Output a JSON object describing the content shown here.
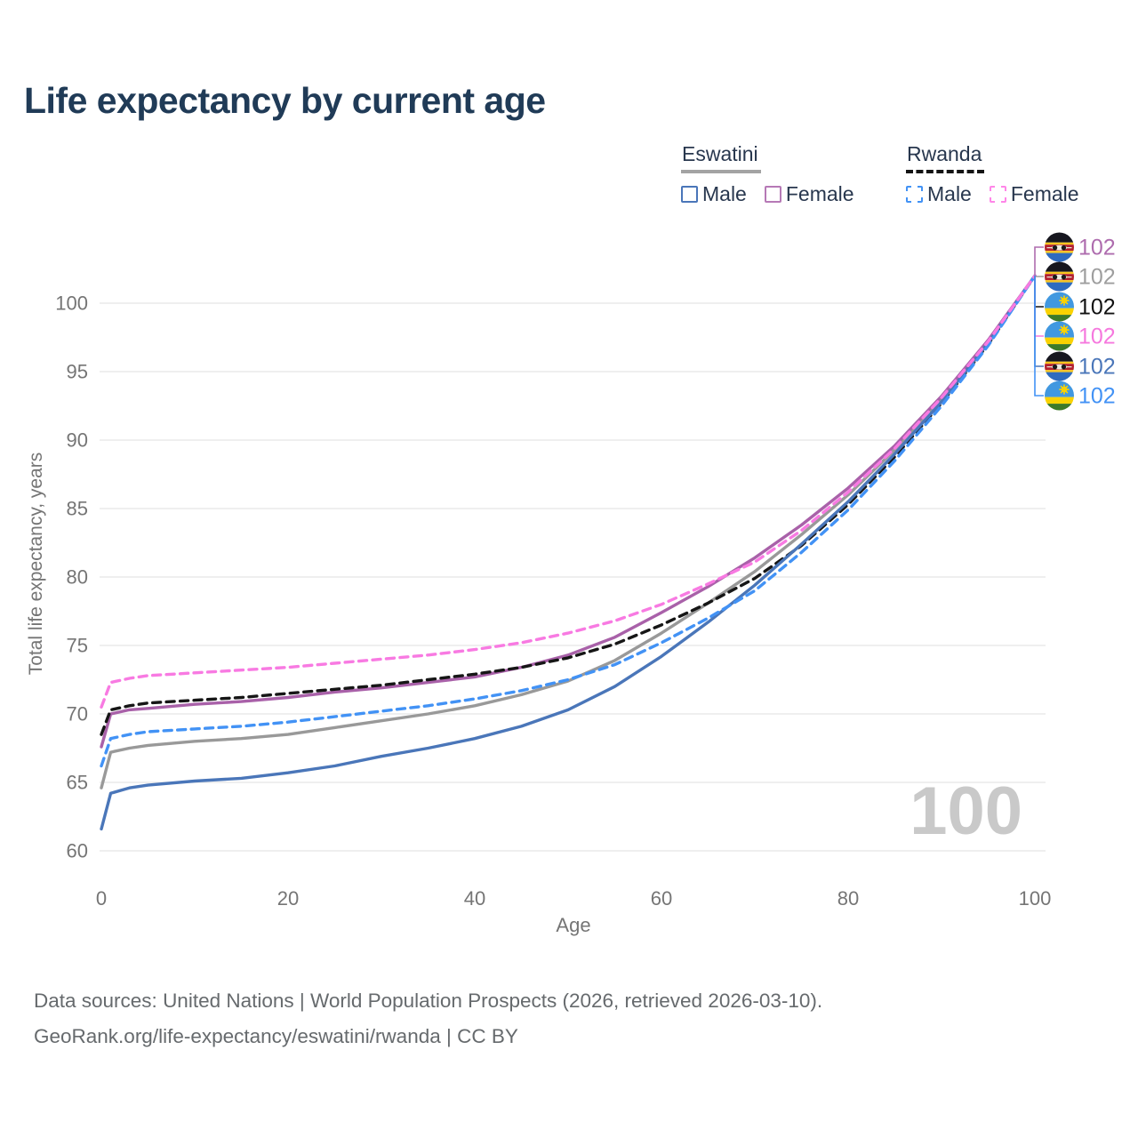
{
  "title": "Life expectancy by current age",
  "legend": {
    "groups": [
      {
        "label": "Eswatini",
        "line_style": "solid",
        "underline_color": "#a3a3a3",
        "items": [
          {
            "label": "Male",
            "color": "#4a76b9",
            "dashed": false
          },
          {
            "label": "Female",
            "color": "#b679b6",
            "dashed": false
          }
        ]
      },
      {
        "label": "Rwanda",
        "line_style": "dashed",
        "underline_color": "#141414",
        "items": [
          {
            "label": "Male",
            "color": "#4292f5",
            "dashed": true
          },
          {
            "label": "Female",
            "color": "#ff86e8",
            "dashed": true
          }
        ]
      }
    ]
  },
  "chart_data": {
    "type": "line",
    "title": "Life expectancy by current age",
    "xlabel": "Age",
    "ylabel": "Total life expectancy, years",
    "xlim": [
      0,
      100
    ],
    "ylim": [
      60,
      103
    ],
    "xticks": [
      0,
      20,
      40,
      60,
      80,
      100
    ],
    "yticks": [
      60,
      65,
      70,
      75,
      80,
      85,
      90,
      95,
      100
    ],
    "grid": "horizontal",
    "watermark": "100",
    "series": [
      {
        "name": "eswatini-total",
        "country": "Eswatini",
        "sex": "Total",
        "color": "#999999",
        "dashed": false,
        "points": [
          [
            0,
            64.6
          ],
          [
            1,
            67.2
          ],
          [
            3,
            67.5
          ],
          [
            5,
            67.7
          ],
          [
            10,
            68.0
          ],
          [
            15,
            68.2
          ],
          [
            20,
            68.5
          ],
          [
            25,
            69.0
          ],
          [
            30,
            69.5
          ],
          [
            35,
            70.0
          ],
          [
            40,
            70.6
          ],
          [
            45,
            71.4
          ],
          [
            50,
            72.4
          ],
          [
            55,
            73.9
          ],
          [
            60,
            75.9
          ],
          [
            65,
            78.1
          ],
          [
            70,
            80.4
          ],
          [
            75,
            83.1
          ],
          [
            80,
            86.0
          ],
          [
            85,
            89.3
          ],
          [
            90,
            93.0
          ],
          [
            95,
            97.2
          ],
          [
            100,
            102
          ]
        ]
      },
      {
        "name": "eswatini-female",
        "country": "Eswatini",
        "sex": "Female",
        "color": "#a961a9",
        "dashed": false,
        "points": [
          [
            0,
            67.6
          ],
          [
            1,
            70.0
          ],
          [
            3,
            70.3
          ],
          [
            5,
            70.4
          ],
          [
            10,
            70.7
          ],
          [
            15,
            70.9
          ],
          [
            20,
            71.2
          ],
          [
            25,
            71.6
          ],
          [
            30,
            71.9
          ],
          [
            35,
            72.3
          ],
          [
            40,
            72.7
          ],
          [
            45,
            73.4
          ],
          [
            50,
            74.3
          ],
          [
            55,
            75.6
          ],
          [
            60,
            77.4
          ],
          [
            65,
            79.3
          ],
          [
            70,
            81.4
          ],
          [
            75,
            83.8
          ],
          [
            80,
            86.5
          ],
          [
            85,
            89.6
          ],
          [
            90,
            93.2
          ],
          [
            95,
            97.3
          ],
          [
            100,
            102
          ]
        ]
      },
      {
        "name": "rwanda-total",
        "country": "Rwanda",
        "sex": "Total",
        "color": "#161616",
        "dashed": true,
        "points": [
          [
            0,
            68.5
          ],
          [
            1,
            70.3
          ],
          [
            3,
            70.6
          ],
          [
            5,
            70.8
          ],
          [
            10,
            71.0
          ],
          [
            15,
            71.2
          ],
          [
            20,
            71.5
          ],
          [
            25,
            71.8
          ],
          [
            30,
            72.1
          ],
          [
            35,
            72.5
          ],
          [
            40,
            72.9
          ],
          [
            45,
            73.4
          ],
          [
            50,
            74.1
          ],
          [
            55,
            75.1
          ],
          [
            60,
            76.5
          ],
          [
            65,
            78.1
          ],
          [
            70,
            79.9
          ],
          [
            75,
            82.3
          ],
          [
            80,
            85.3
          ],
          [
            85,
            88.8
          ],
          [
            90,
            92.7
          ],
          [
            95,
            97.0
          ],
          [
            100,
            102
          ]
        ]
      },
      {
        "name": "eswatini-male",
        "country": "Eswatini",
        "sex": "Male",
        "color": "#4a76b9",
        "dashed": false,
        "points": [
          [
            0,
            61.6
          ],
          [
            1,
            64.2
          ],
          [
            3,
            64.6
          ],
          [
            5,
            64.8
          ],
          [
            10,
            65.1
          ],
          [
            15,
            65.3
          ],
          [
            20,
            65.7
          ],
          [
            25,
            66.2
          ],
          [
            30,
            66.9
          ],
          [
            35,
            67.5
          ],
          [
            40,
            68.2
          ],
          [
            45,
            69.1
          ],
          [
            50,
            70.3
          ],
          [
            55,
            72.0
          ],
          [
            60,
            74.2
          ],
          [
            65,
            76.7
          ],
          [
            70,
            79.4
          ],
          [
            75,
            82.4
          ],
          [
            80,
            85.5
          ],
          [
            85,
            89.0
          ],
          [
            90,
            92.8
          ],
          [
            95,
            97.1
          ],
          [
            100,
            102
          ]
        ]
      },
      {
        "name": "rwanda-male",
        "country": "Rwanda",
        "sex": "Male",
        "color": "#4292f5",
        "dashed": true,
        "points": [
          [
            0,
            66.2
          ],
          [
            1,
            68.2
          ],
          [
            3,
            68.5
          ],
          [
            5,
            68.7
          ],
          [
            10,
            68.9
          ],
          [
            15,
            69.1
          ],
          [
            20,
            69.4
          ],
          [
            25,
            69.8
          ],
          [
            30,
            70.2
          ],
          [
            35,
            70.6
          ],
          [
            40,
            71.1
          ],
          [
            45,
            71.7
          ],
          [
            50,
            72.5
          ],
          [
            55,
            73.6
          ],
          [
            60,
            75.2
          ],
          [
            65,
            77.0
          ],
          [
            70,
            79.0
          ],
          [
            75,
            81.8
          ],
          [
            80,
            84.9
          ],
          [
            85,
            88.5
          ],
          [
            90,
            92.5
          ],
          [
            95,
            96.9
          ],
          [
            100,
            102
          ]
        ]
      },
      {
        "name": "rwanda-female",
        "country": "Rwanda",
        "sex": "Female",
        "color": "#f87ae2",
        "dashed": true,
        "points": [
          [
            0,
            70.5
          ],
          [
            1,
            72.3
          ],
          [
            3,
            72.6
          ],
          [
            5,
            72.8
          ],
          [
            10,
            73.0
          ],
          [
            15,
            73.2
          ],
          [
            20,
            73.4
          ],
          [
            25,
            73.7
          ],
          [
            30,
            74.0
          ],
          [
            35,
            74.3
          ],
          [
            40,
            74.7
          ],
          [
            45,
            75.2
          ],
          [
            50,
            75.9
          ],
          [
            55,
            76.8
          ],
          [
            60,
            78.0
          ],
          [
            65,
            79.5
          ],
          [
            70,
            81.1
          ],
          [
            75,
            83.4
          ],
          [
            80,
            86.2
          ],
          [
            85,
            89.4
          ],
          [
            90,
            93.1
          ],
          [
            95,
            97.2
          ],
          [
            100,
            102
          ]
        ]
      }
    ],
    "end_labels": [
      {
        "flag": "eswatini",
        "series": "eswatini-female",
        "value": "102",
        "color": "#ae6cae"
      },
      {
        "flag": "eswatini",
        "series": "eswatini-total",
        "value": "102",
        "color": "#9e9e9e"
      },
      {
        "flag": "rwanda",
        "series": "rwanda-total",
        "value": "102",
        "color": "#111111"
      },
      {
        "flag": "rwanda",
        "series": "rwanda-female",
        "value": "102",
        "color": "#f678de"
      },
      {
        "flag": "eswatini",
        "series": "eswatini-male",
        "value": "102",
        "color": "#4a76b9"
      },
      {
        "flag": "rwanda",
        "series": "rwanda-male",
        "value": "102",
        "color": "#4292f5"
      }
    ]
  },
  "footer": {
    "line1": "Data sources: United Nations | World Population Prospects (2026, retrieved 2026-03-10).",
    "line2": "GeoRank.org/life-expectancy/eswatini/rwanda | CC BY"
  }
}
